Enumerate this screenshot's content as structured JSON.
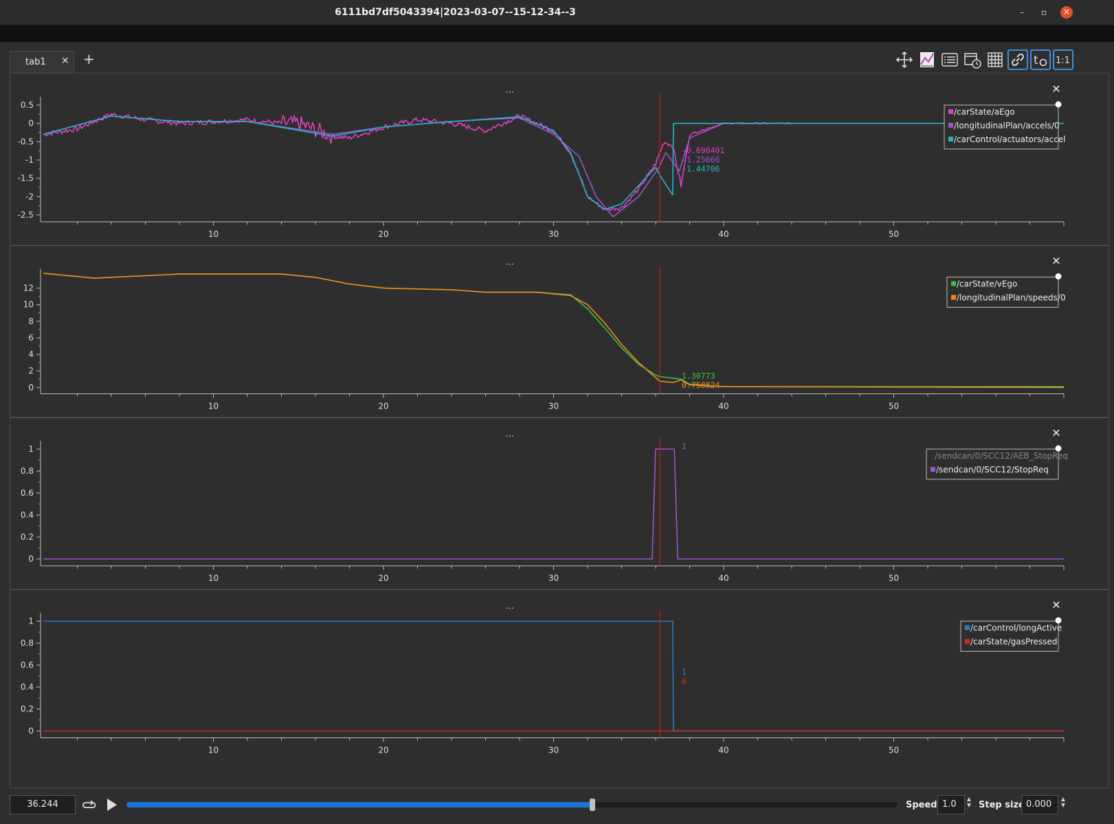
{
  "window": {
    "title": "6111bd7df5043394|2023-03-07--15-12-34--3"
  },
  "tabs": [
    {
      "label": "tab1",
      "close": "✕"
    }
  ],
  "add_tab": "+",
  "toolbar": {
    "buttons": [
      {
        "name": "move-icon"
      },
      {
        "name": "ratio-icon"
      },
      {
        "name": "legend-icon"
      },
      {
        "name": "timer-icon"
      },
      {
        "name": "grid-icon"
      },
      {
        "name": "link-icon",
        "active": true
      },
      {
        "name": "time-offset-icon",
        "text": "t0",
        "active": true
      },
      {
        "name": "zoom-ratio-icon",
        "text": "1:1",
        "active": true
      }
    ]
  },
  "plots": [
    {
      "menu": "...",
      "close": "✕",
      "yticks": [
        0.5,
        0,
        -0.5,
        -1,
        -1.5,
        -2,
        -2.5
      ],
      "ylim": [
        -2.65,
        0.65
      ],
      "xticks": [
        10,
        20,
        30,
        40,
        50
      ],
      "legend": [
        {
          "label": "/carState/aEgo",
          "color": "#e040c0"
        },
        {
          "label": "/longitudinalPlan/accels/0",
          "color": "#9a55c7"
        },
        {
          "label": "/carControl/actuators/accel",
          "color": "#1fb8cc"
        }
      ],
      "cursor_values": [
        {
          "text": "-0.690401",
          "color": "#e040c0"
        },
        {
          "text": "-1.25666",
          "color": "#9a55c7"
        },
        {
          "text": "-1.44706",
          "color": "#1fb8cc"
        }
      ]
    },
    {
      "menu": "...",
      "close": "✕",
      "yticks": [
        12,
        10,
        8,
        6,
        4,
        2,
        0
      ],
      "ylim": [
        -0.6,
        14
      ],
      "xticks": [
        10,
        20,
        30,
        40,
        50
      ],
      "legend": [
        {
          "label": "/carState/vEgo",
          "color": "#3fbf3f"
        },
        {
          "label": "/longitudinalPlan/speeds/0",
          "color": "#f08a1e"
        }
      ],
      "cursor_values": [
        {
          "text": "1.30773",
          "color": "#3fbf3f"
        },
        {
          "text": "0.758824",
          "color": "#f08a1e"
        }
      ]
    },
    {
      "menu": "...",
      "close": "✕",
      "yticks": [
        1,
        0.8,
        0.6,
        0.4,
        0.2,
        0
      ],
      "ylim": [
        -0.05,
        1.05
      ],
      "xticks": [
        10,
        20,
        30,
        40,
        50
      ],
      "legend": [
        {
          "label": "/sendcan/0/SCC12/AEB_StopReq",
          "color": "#777777",
          "hidden": true
        },
        {
          "label": "/sendcan/0/SCC12/StopReq",
          "color": "#9a55c7"
        }
      ],
      "cursor_values": [
        {
          "text": "1",
          "color": "#9a55c7"
        }
      ]
    },
    {
      "menu": "...",
      "close": "✕",
      "yticks": [
        1,
        0.8,
        0.6,
        0.4,
        0.2,
        0
      ],
      "ylim": [
        -0.05,
        1.05
      ],
      "xticks": [
        10,
        20,
        30,
        40,
        50
      ],
      "legend": [
        {
          "label": "/carControl/longActive",
          "color": "#2a7bc4"
        },
        {
          "label": "/carState/gasPressed",
          "color": "#d42828"
        }
      ],
      "cursor_values": [
        {
          "text": "1",
          "color": "#2a7bc4"
        },
        {
          "text": "0",
          "color": "#d42828"
        }
      ]
    }
  ],
  "chart_data": [
    {
      "type": "line",
      "xlim": [
        0,
        60
      ],
      "cursor_x": 36.244,
      "series": [
        {
          "name": "/carState/aEgo",
          "color": "#e040c0",
          "noise": true,
          "points": [
            [
              0,
              -0.3
            ],
            [
              2,
              -0.15
            ],
            [
              4,
              0.25
            ],
            [
              6,
              0.1
            ],
            [
              8,
              0.0
            ],
            [
              10,
              0.05
            ],
            [
              12,
              0.1
            ],
            [
              14,
              0.0
            ],
            [
              15,
              0.0
            ],
            [
              17,
              -0.35
            ],
            [
              18,
              -0.4
            ],
            [
              20,
              -0.1
            ],
            [
              22,
              0.1
            ],
            [
              24,
              0.0
            ],
            [
              26,
              -0.2
            ],
            [
              28,
              0.2
            ],
            [
              29,
              0.0
            ],
            [
              30,
              -0.2
            ],
            [
              31,
              -0.8
            ],
            [
              32,
              -2.0
            ],
            [
              33,
              -2.35
            ],
            [
              34,
              -2.3
            ],
            [
              35,
              -1.8
            ],
            [
              36,
              -1.1
            ],
            [
              36.5,
              -0.5
            ],
            [
              37,
              -0.6
            ],
            [
              37.5,
              -1.7
            ],
            [
              38,
              -0.3
            ],
            [
              40,
              0.0
            ],
            [
              44,
              0.0
            ]
          ]
        },
        {
          "name": "/longitudinalPlan/accels/0",
          "color": "#9a55c7",
          "points": [
            [
              0,
              -0.3
            ],
            [
              4,
              0.2
            ],
            [
              8,
              0.05
            ],
            [
              12,
              0.05
            ],
            [
              17,
              -0.3
            ],
            [
              20,
              -0.1
            ],
            [
              24,
              0.05
            ],
            [
              28,
              0.15
            ],
            [
              30,
              -0.3
            ],
            [
              31.5,
              -0.9
            ],
            [
              32.5,
              -2.0
            ],
            [
              33.5,
              -2.55
            ],
            [
              35,
              -2.0
            ],
            [
              36.2,
              -1.2
            ],
            [
              36.6,
              -0.8
            ],
            [
              37.4,
              -1.3
            ],
            [
              38,
              -0.4
            ],
            [
              40,
              0.0
            ],
            [
              44,
              0.0
            ]
          ]
        },
        {
          "name": "/carControl/actuators/accel",
          "color": "#1fb8cc",
          "points": [
            [
              0,
              -0.3
            ],
            [
              4,
              0.2
            ],
            [
              8,
              0.05
            ],
            [
              12,
              0.05
            ],
            [
              17,
              -0.35
            ],
            [
              20,
              -0.1
            ],
            [
              24,
              0.05
            ],
            [
              28,
              0.18
            ],
            [
              30,
              -0.2
            ],
            [
              31,
              -0.8
            ],
            [
              32,
              -2.0
            ],
            [
              33,
              -2.35
            ],
            [
              34,
              -2.2
            ],
            [
              36,
              -1.2
            ],
            [
              36.3,
              -1.45
            ],
            [
              37.0,
              -1.95
            ],
            [
              37.05,
              0.0
            ],
            [
              60,
              0.0
            ]
          ]
        }
      ]
    },
    {
      "type": "line",
      "xlim": [
        0,
        60
      ],
      "cursor_x": 36.244,
      "series": [
        {
          "name": "/carState/vEgo",
          "color": "#3fbf3f",
          "points": [
            [
              0,
              13.8
            ],
            [
              3,
              13.2
            ],
            [
              6,
              13.5
            ],
            [
              8,
              13.7
            ],
            [
              14,
              13.7
            ],
            [
              16,
              13.3
            ],
            [
              18,
              12.5
            ],
            [
              20,
              12.0
            ],
            [
              24,
              11.8
            ],
            [
              26,
              11.5
            ],
            [
              29,
              11.5
            ],
            [
              31,
              11.2
            ],
            [
              32,
              9.5
            ],
            [
              33,
              7.2
            ],
            [
              34,
              4.8
            ],
            [
              35,
              2.8
            ],
            [
              36,
              1.5
            ],
            [
              36.24,
              1.31
            ],
            [
              37.5,
              1.0
            ],
            [
              38,
              0.4
            ],
            [
              40,
              0.1
            ],
            [
              60,
              0.1
            ]
          ]
        },
        {
          "name": "/longitudinalPlan/speeds/0",
          "color": "#f08a1e",
          "points": [
            [
              0,
              13.8
            ],
            [
              3,
              13.2
            ],
            [
              6,
              13.5
            ],
            [
              8,
              13.7
            ],
            [
              14,
              13.7
            ],
            [
              16,
              13.3
            ],
            [
              18,
              12.5
            ],
            [
              20,
              12.0
            ],
            [
              24,
              11.8
            ],
            [
              26,
              11.5
            ],
            [
              29,
              11.5
            ],
            [
              31,
              11.1
            ],
            [
              32,
              10.0
            ],
            [
              33,
              7.8
            ],
            [
              34,
              5.2
            ],
            [
              35,
              3.0
            ],
            [
              36,
              1.2
            ],
            [
              36.24,
              0.76
            ],
            [
              37,
              0.6
            ],
            [
              37.5,
              0.9
            ],
            [
              38,
              0.3
            ],
            [
              40,
              0.1
            ],
            [
              60,
              0.0
            ]
          ]
        }
      ]
    },
    {
      "type": "line",
      "xlim": [
        0,
        60
      ],
      "cursor_x": 36.244,
      "series": [
        {
          "name": "/sendcan/0/SCC12/StopReq",
          "color": "#9a55c7",
          "points": [
            [
              0,
              0
            ],
            [
              35.8,
              0
            ],
            [
              36.0,
              1
            ],
            [
              37.1,
              1
            ],
            [
              37.3,
              0
            ],
            [
              60,
              0
            ]
          ]
        }
      ]
    },
    {
      "type": "line",
      "xlim": [
        0,
        60
      ],
      "cursor_x": 36.244,
      "series": [
        {
          "name": "/carControl/longActive",
          "color": "#2a7bc4",
          "points": [
            [
              0,
              1
            ],
            [
              37.0,
              1
            ],
            [
              37.05,
              0
            ],
            [
              60,
              0
            ]
          ]
        },
        {
          "name": "/carState/gasPressed",
          "color": "#d42828",
          "points": [
            [
              0,
              0
            ],
            [
              60,
              0
            ]
          ]
        }
      ]
    }
  ],
  "playback": {
    "time": "36.244",
    "progress": 0.604,
    "speed_label": "Speed:",
    "speed_value": "1.0",
    "step_label": "Step size:",
    "step_value": "0.000"
  }
}
